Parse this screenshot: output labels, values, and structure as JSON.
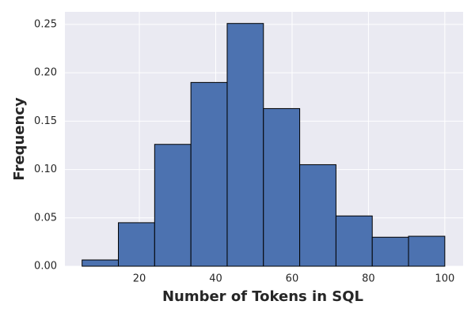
{
  "chart_data": {
    "type": "histogram",
    "xlabel": "Number of Tokens in SQL",
    "ylabel": "Frequency",
    "bins": [
      5,
      14.5,
      24,
      33.5,
      43,
      52.5,
      62,
      71.5,
      81,
      90.5,
      100
    ],
    "values": [
      0.0065,
      0.045,
      0.126,
      0.19,
      0.251,
      0.163,
      0.105,
      0.052,
      0.03,
      0.031
    ],
    "color": "#4c72b0",
    "edgecolor": "#000000",
    "xlim": [
      0.5,
      104.8
    ],
    "ylim": [
      0,
      0.263
    ],
    "xticks": [
      20,
      40,
      60,
      80,
      100
    ],
    "yticks": [
      {
        "value": 0,
        "label": "0.00"
      },
      {
        "value": 0.05,
        "label": "0.05"
      },
      {
        "value": 0.1,
        "label": "0.10"
      },
      {
        "value": 0.15,
        "label": "0.15"
      },
      {
        "value": 0.2,
        "label": "0.20"
      },
      {
        "value": 0.25,
        "label": "0.25"
      }
    ],
    "grid": true,
    "background": "#eaeaf2"
  }
}
